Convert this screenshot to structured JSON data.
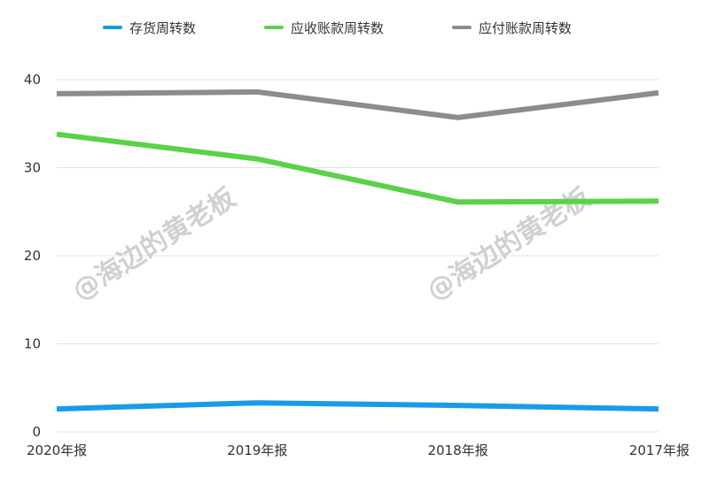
{
  "chart_data": {
    "type": "line",
    "categories": [
      "2020年报",
      "2019年报",
      "2018年报",
      "2017年报"
    ],
    "series": [
      {
        "name": "存货周转数",
        "color": "#1a9be8",
        "values": [
          2.6,
          3.3,
          3.0,
          2.6
        ]
      },
      {
        "name": "应收账款周转数",
        "color": "#5bd14a",
        "values": [
          33.8,
          31.0,
          26.1,
          26.2
        ]
      },
      {
        "name": "应付账款周转数",
        "color": "#8c8c8c",
        "values": [
          38.4,
          38.6,
          35.7,
          38.5
        ]
      }
    ],
    "ylim": [
      0,
      40
    ],
    "yticks": [
      0,
      10,
      20,
      30,
      40
    ],
    "grid": true,
    "legend": "top"
  },
  "watermarks": [
    "@海边的黄老板",
    "@海边的黄老板"
  ]
}
